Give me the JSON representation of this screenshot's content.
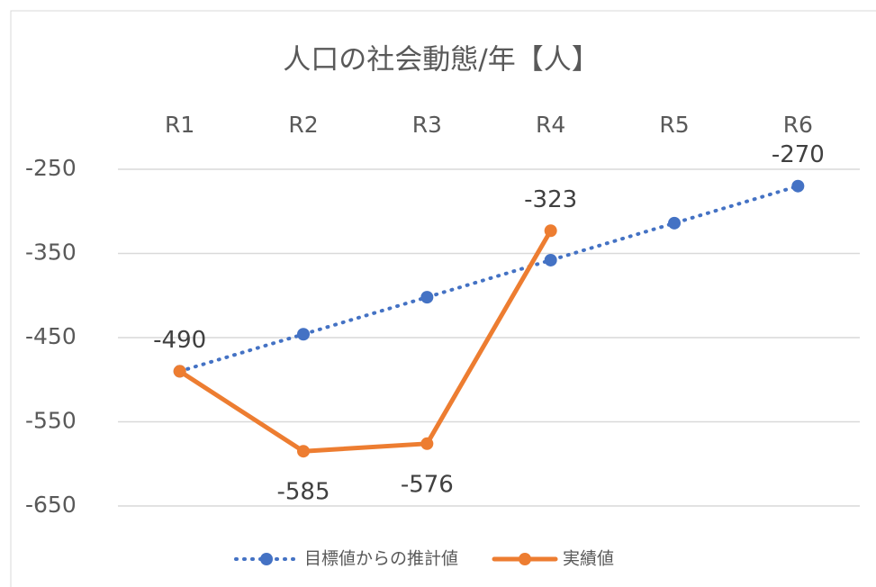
{
  "chart_data": {
    "type": "line",
    "title": "人口の社会動態/年【人】",
    "categories": [
      "R1",
      "R2",
      "R3",
      "R4",
      "R5",
      "R6"
    ],
    "series": [
      {
        "name": "目標値からの推計値",
        "color": "#4472c4",
        "dash": "dotted",
        "values": [
          -490,
          -446,
          -402,
          -358,
          -314,
          -270
        ]
      },
      {
        "name": "実績値",
        "color": "#ed7d31",
        "dash": "solid",
        "values": [
          -490,
          -585,
          -576,
          -323,
          null,
          null
        ]
      }
    ],
    "ylim": [
      -650,
      -250
    ],
    "yticks": [
      -650,
      -550,
      -450,
      -350,
      -250
    ],
    "grid": true,
    "legend": "bottom"
  }
}
